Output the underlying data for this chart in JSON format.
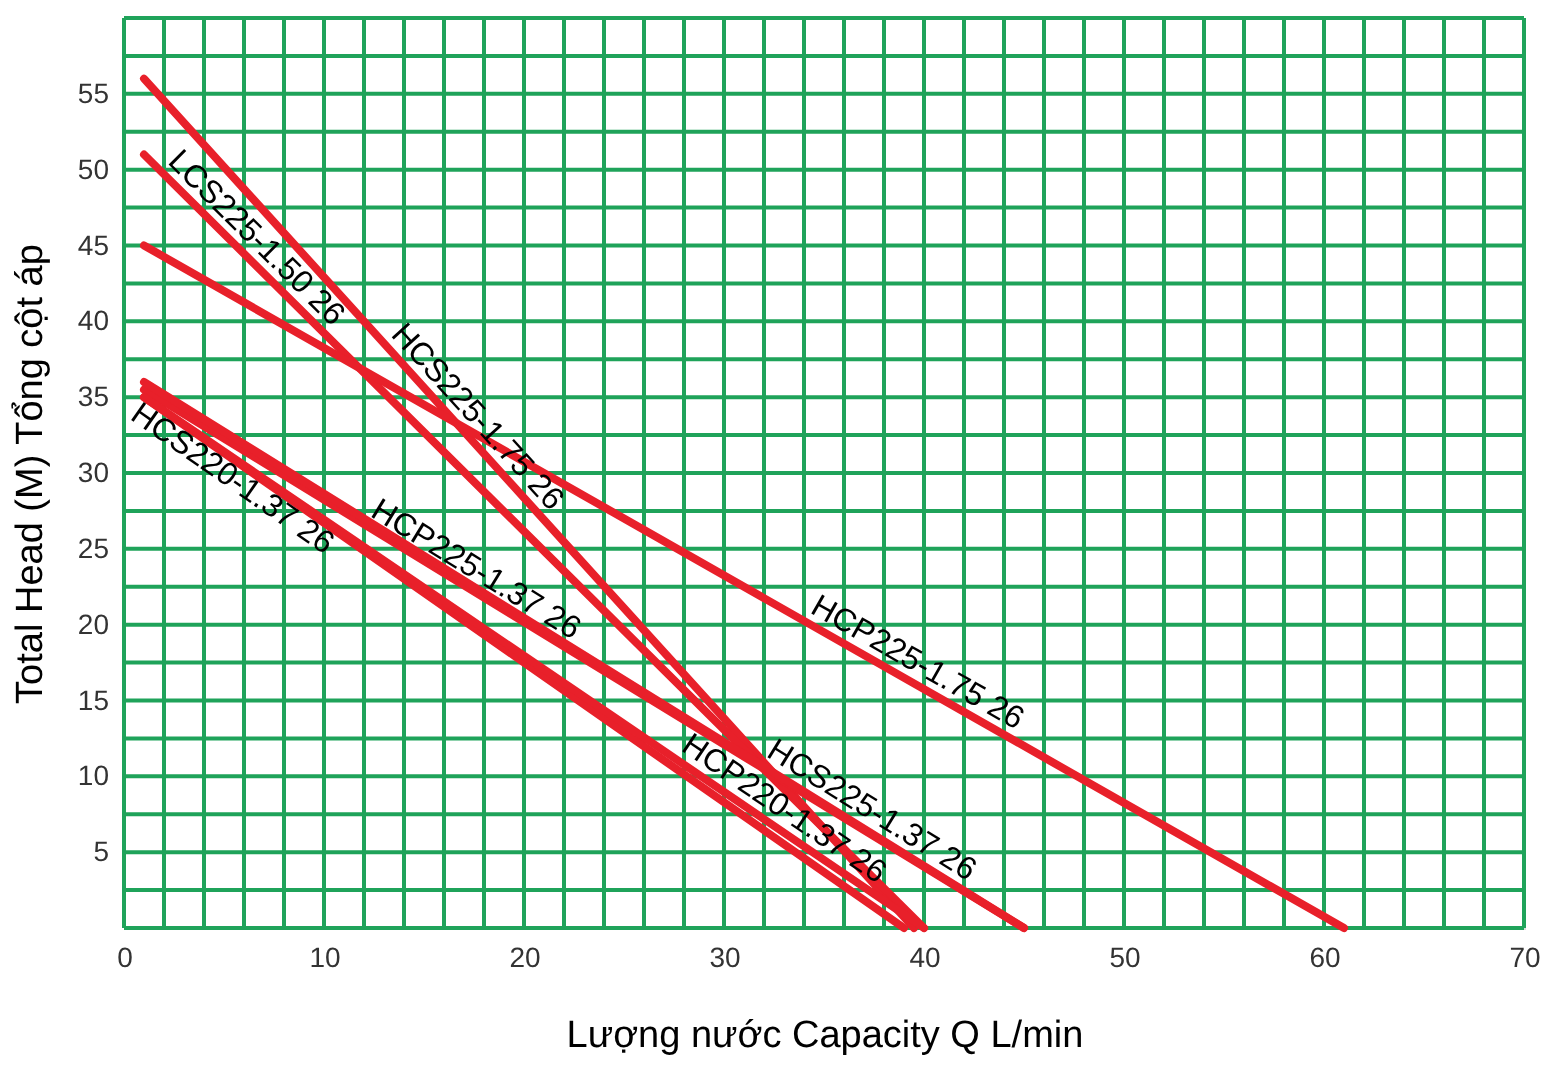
{
  "chart_data": {
    "type": "line",
    "xlabel": "Lượng nước Capacity Q L/min",
    "ylabel": "Total Head (M) Tổng cột áp",
    "xlim": [
      0,
      70
    ],
    "ylim": [
      0,
      60
    ],
    "xticks": [
      0,
      {
        "value": 2,
        "label": null
      },
      {
        "value": 4,
        "label": null
      },
      {
        "value": 6,
        "label": null
      },
      {
        "value": 8,
        "label": null
      },
      10,
      {
        "value": 12,
        "label": null
      },
      {
        "value": 14,
        "label": null
      },
      {
        "value": 16,
        "label": null
      },
      {
        "value": 18,
        "label": null
      },
      20,
      {
        "value": 22,
        "label": null
      },
      {
        "value": 24,
        "label": null
      },
      {
        "value": 26,
        "label": null
      },
      {
        "value": 28,
        "label": null
      },
      30,
      {
        "value": 32,
        "label": null
      },
      {
        "value": 34,
        "label": null
      },
      {
        "value": 36,
        "label": null
      },
      {
        "value": 38,
        "label": null
      },
      40,
      {
        "value": 42,
        "label": null
      },
      {
        "value": 44,
        "label": null
      },
      {
        "value": 46,
        "label": null
      },
      {
        "value": 48,
        "label": null
      },
      50,
      {
        "value": 52,
        "label": null
      },
      {
        "value": 54,
        "label": null
      },
      {
        "value": 56,
        "label": null
      },
      {
        "value": 58,
        "label": null
      },
      60,
      {
        "value": 62,
        "label": null
      },
      {
        "value": 64,
        "label": null
      },
      {
        "value": 66,
        "label": null
      },
      {
        "value": 68,
        "label": null
      },
      70
    ],
    "yticks": [
      {
        "value": 0,
        "label": null
      },
      {
        "value": 2.5,
        "label": null
      },
      5,
      {
        "value": 7.5,
        "label": null
      },
      10,
      {
        "value": 12.5,
        "label": null
      },
      15,
      {
        "value": 17.5,
        "label": null
      },
      20,
      {
        "value": 22.5,
        "label": null
      },
      25,
      {
        "value": 27.5,
        "label": null
      },
      30,
      {
        "value": 32.5,
        "label": null
      },
      35,
      {
        "value": 37.5,
        "label": null
      },
      40,
      {
        "value": 42.5,
        "label": null
      },
      45,
      {
        "value": 47.5,
        "label": null
      },
      50,
      {
        "value": 52.5,
        "label": null
      },
      55,
      {
        "value": 57.5,
        "label": null
      },
      {
        "value": 60,
        "label": null
      }
    ],
    "grid": true,
    "legend": false,
    "marker": "none",
    "line_style": "solid",
    "series": [
      {
        "name": "HCS225-1.75  26",
        "color": "#e8202a",
        "x": [
          1,
          39.5
        ],
        "values": [
          56,
          0
        ]
      },
      {
        "name": "LCS225-1.50  26",
        "color": "#e8202a",
        "x": [
          1,
          40
        ],
        "values": [
          51,
          0
        ]
      },
      {
        "name": "HCP225-1.75  26",
        "color": "#e8202a",
        "x": [
          1,
          61
        ],
        "values": [
          45,
          0
        ]
      },
      {
        "name": "HCS220-1.37  26",
        "color": "#e8202a",
        "x": [
          1,
          39
        ],
        "values": [
          35,
          0
        ]
      },
      {
        "name": "HCP225-1.37  26",
        "color": "#e8202a",
        "x": [
          1,
          45
        ],
        "values": [
          35.5,
          0
        ]
      },
      {
        "name": "HCS225-1.37  26",
        "color": "#e8202a",
        "x": [
          1,
          45
        ],
        "values": [
          36,
          0
        ]
      },
      {
        "name": "HCP220-1.37  26",
        "color": "#e8202a",
        "x": [
          1,
          40
        ],
        "values": [
          35,
          0
        ]
      }
    ]
  }
}
